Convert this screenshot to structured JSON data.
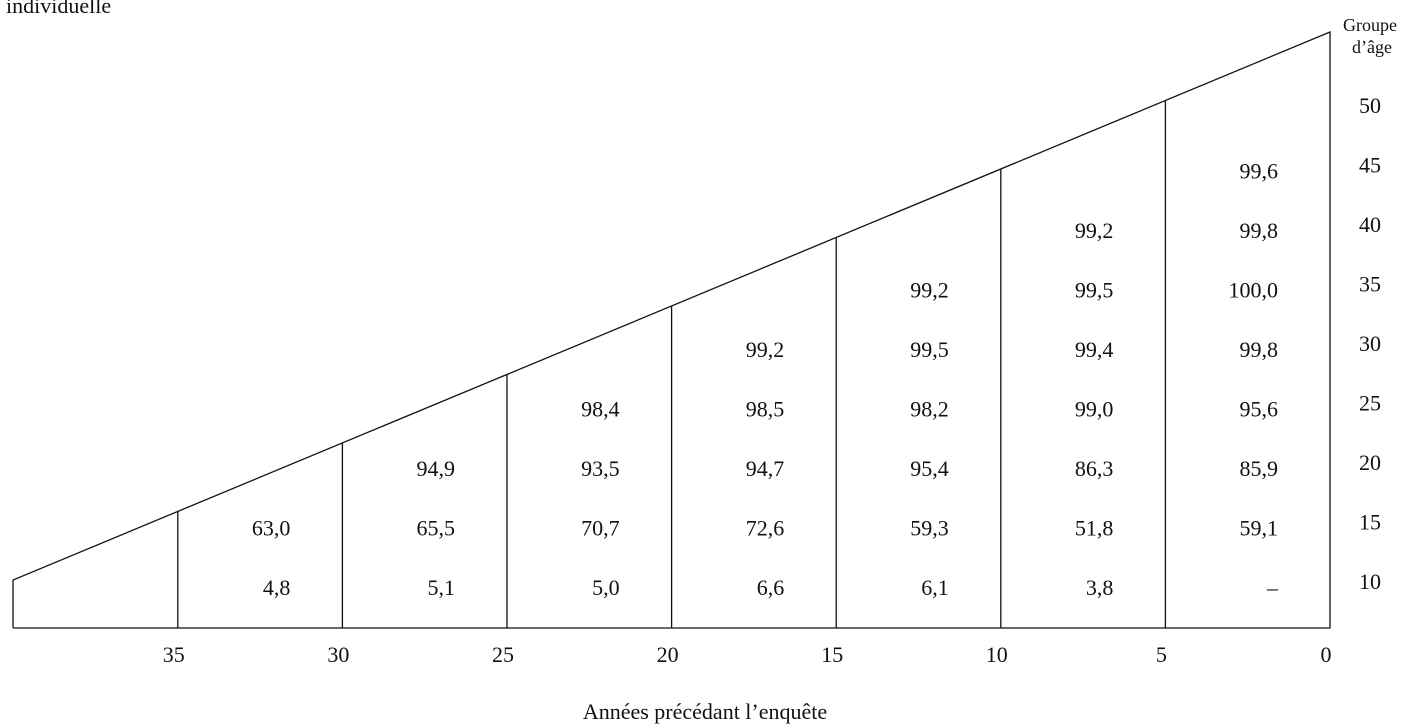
{
  "header": {
    "caption": "individuelle"
  },
  "age_axis": {
    "title_lines": [
      "Groupe",
      "d’âge"
    ],
    "labels": [
      "50",
      "45",
      "40",
      "35",
      "30",
      "25",
      "20",
      "15",
      "10"
    ]
  },
  "year_axis": {
    "title": "Années précédant l’enquête",
    "labels": [
      "35",
      "30",
      "25",
      "20",
      "15",
      "10",
      "5",
      "0"
    ]
  },
  "columns": [
    [
      "4,8",
      "63,0"
    ],
    [
      "5,1",
      "65,5",
      "94,9"
    ],
    [
      "5,0",
      "70,7",
      "93,5",
      "98,4"
    ],
    [
      "6,6",
      "72,6",
      "94,7",
      "98,5",
      "99,2"
    ],
    [
      "6,1",
      "59,3",
      "95,4",
      "98,2",
      "99,5",
      "99,2"
    ],
    [
      "3,8",
      "51,8",
      "86,3",
      "99,0",
      "99,4",
      "99,5",
      "99,2"
    ],
    [
      "–",
      "59,1",
      "85,9",
      "95,6",
      "99,8",
      "100,0",
      "99,8",
      "99,6"
    ]
  ]
}
